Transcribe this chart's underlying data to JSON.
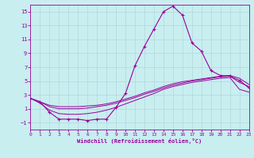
{
  "xlabel": "Windchill (Refroidissement éolien,°C)",
  "background_color": "#c8eef0",
  "line_color": "#990099",
  "x_data": [
    0,
    1,
    2,
    3,
    4,
    5,
    6,
    7,
    8,
    9,
    10,
    11,
    12,
    13,
    14,
    15,
    16,
    17,
    18,
    19,
    20,
    21,
    22,
    23
  ],
  "y_main": [
    2.5,
    2.0,
    0.5,
    -0.5,
    -0.5,
    -0.5,
    -0.7,
    -0.5,
    -0.5,
    1.2,
    3.2,
    7.2,
    10.0,
    12.5,
    15.0,
    15.8,
    14.5,
    10.5,
    9.3,
    6.5,
    5.8,
    5.7,
    5.1,
    4.0
  ],
  "y_line2": [
    2.5,
    2.0,
    1.5,
    1.3,
    1.3,
    1.3,
    1.4,
    1.5,
    1.7,
    2.0,
    2.4,
    2.8,
    3.3,
    3.7,
    4.2,
    4.6,
    4.9,
    5.1,
    5.3,
    5.5,
    5.7,
    5.8,
    5.4,
    4.5
  ],
  "y_line3": [
    2.5,
    2.0,
    1.3,
    1.0,
    1.0,
    1.0,
    1.1,
    1.3,
    1.5,
    1.8,
    2.2,
    2.6,
    3.1,
    3.5,
    4.0,
    4.4,
    4.7,
    5.0,
    5.2,
    5.4,
    5.6,
    5.7,
    4.8,
    4.2
  ],
  "y_line4": [
    2.5,
    1.8,
    0.8,
    0.3,
    0.2,
    0.2,
    0.3,
    0.5,
    0.8,
    1.2,
    1.7,
    2.2,
    2.7,
    3.2,
    3.8,
    4.2,
    4.5,
    4.8,
    5.0,
    5.2,
    5.4,
    5.5,
    3.8,
    3.4
  ],
  "ylim": [
    -2,
    16
  ],
  "xlim": [
    0,
    23
  ],
  "yticks": [
    -1,
    1,
    3,
    5,
    7,
    9,
    11,
    13,
    15
  ],
  "xticks": [
    0,
    1,
    2,
    3,
    4,
    5,
    6,
    7,
    8,
    9,
    10,
    11,
    12,
    13,
    14,
    15,
    16,
    17,
    18,
    19,
    20,
    21,
    22,
    23
  ]
}
